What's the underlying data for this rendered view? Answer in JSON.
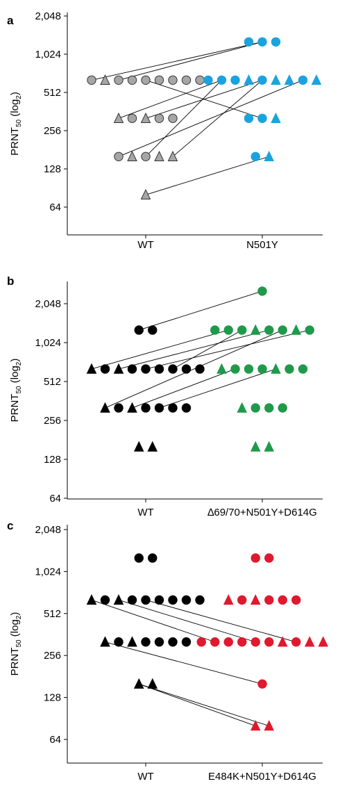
{
  "figure": {
    "ylabel": "PRNT",
    "ylabel_sub": "50",
    "ylabel_tail": " (log",
    "ylabel_tail_sub": "2",
    "ylabel_close": ")",
    "y_ticks": [
      "64",
      "128",
      "256",
      "512",
      "1,024",
      "2,048"
    ]
  },
  "chart_data": [
    {
      "type": "scatter",
      "panel": "a",
      "categories": [
        "WT",
        "N501Y"
      ],
      "y_scale": "log2",
      "ylim": [
        40,
        2048
      ],
      "y_ticks": [
        64,
        128,
        256,
        512,
        1024,
        2048
      ],
      "colors": {
        "WT": "#a6a6a6",
        "variant": "#1ba3e0"
      },
      "points": {
        "WT": [
          {
            "y": 640,
            "markers": [
              "circle",
              "triangle",
              "circle",
              "circle",
              "circle",
              "circle",
              "circle",
              "circle",
              "circle"
            ]
          },
          {
            "y": 320,
            "markers": [
              "triangle",
              "circle",
              "triangle",
              "circle",
              "circle"
            ]
          },
          {
            "y": 160,
            "markers": [
              "circle",
              "triangle",
              "circle",
              "triangle",
              "triangle"
            ]
          },
          {
            "y": 80,
            "markers": [
              "triangle"
            ]
          }
        ],
        "variant": [
          {
            "y": 1280,
            "markers": [
              "circle",
              "circle",
              "circle"
            ]
          },
          {
            "y": 640,
            "markers": [
              "circle",
              "circle",
              "circle",
              "triangle",
              "circle",
              "triangle",
              "triangle",
              "circle",
              "triangle"
            ]
          },
          {
            "y": 320,
            "markers": [
              "circle",
              "circle",
              "triangle"
            ]
          },
          {
            "y": 160,
            "markers": [
              "circle",
              "triangle"
            ]
          }
        ]
      },
      "links": [
        [
          640,
          1280
        ],
        [
          640,
          1280
        ],
        [
          640,
          320
        ],
        [
          320,
          640
        ],
        [
          320,
          640
        ],
        [
          160,
          640
        ],
        [
          160,
          640
        ],
        [
          160,
          640
        ],
        [
          80,
          160
        ]
      ]
    },
    {
      "type": "scatter",
      "panel": "b",
      "categories": [
        "WT",
        "∆69/70+N501Y+D614G"
      ],
      "y_scale": "log2",
      "ylim": [
        64,
        2800
      ],
      "y_ticks": [
        64,
        128,
        256,
        512,
        1024,
        2048
      ],
      "colors": {
        "WT": "#000000",
        "variant": "#1f9a4a"
      },
      "points": {
        "WT": [
          {
            "y": 1280,
            "markers": [
              "circle",
              "circle"
            ]
          },
          {
            "y": 640,
            "markers": [
              "triangle",
              "circle",
              "triangle",
              "circle",
              "circle",
              "circle",
              "circle",
              "circle",
              "circle"
            ]
          },
          {
            "y": 320,
            "markers": [
              "triangle",
              "circle",
              "triangle",
              "circle",
              "circle",
              "circle",
              "circle"
            ]
          },
          {
            "y": 160,
            "markers": [
              "triangle",
              "triangle"
            ]
          }
        ],
        "variant": [
          {
            "y": 2560,
            "markers": [
              "circle"
            ]
          },
          {
            "y": 1280,
            "markers": [
              "circle",
              "circle",
              "circle",
              "triangle",
              "circle",
              "circle",
              "triangle",
              "circle"
            ]
          },
          {
            "y": 640,
            "markers": [
              "triangle",
              "circle",
              "circle",
              "circle",
              "triangle",
              "circle",
              "circle"
            ]
          },
          {
            "y": 320,
            "markers": [
              "triangle",
              "circle",
              "circle",
              "circle"
            ]
          },
          {
            "y": 160,
            "markers": [
              "triangle",
              "triangle"
            ]
          }
        ]
      },
      "links": [
        [
          1280,
          2560
        ],
        [
          640,
          1280
        ],
        [
          640,
          1280
        ],
        [
          640,
          1280
        ],
        [
          640,
          1280
        ],
        [
          320,
          1280
        ],
        [
          320,
          640
        ],
        [
          320,
          640
        ]
      ]
    },
    {
      "type": "scatter",
      "panel": "c",
      "categories": [
        "WT",
        "E484K+N501Y+D614G"
      ],
      "y_scale": "log2",
      "ylim": [
        50,
        2048
      ],
      "y_ticks": [
        64,
        128,
        256,
        512,
        1024,
        2048
      ],
      "colors": {
        "WT": "#000000",
        "variant": "#e0192e"
      },
      "points": {
        "WT": [
          {
            "y": 1280,
            "markers": [
              "circle",
              "circle"
            ]
          },
          {
            "y": 640,
            "markers": [
              "triangle",
              "circle",
              "triangle",
              "circle",
              "circle",
              "circle",
              "circle",
              "circle",
              "circle"
            ]
          },
          {
            "y": 320,
            "markers": [
              "triangle",
              "circle",
              "triangle",
              "circle",
              "circle",
              "circle",
              "circle"
            ]
          },
          {
            "y": 160,
            "markers": [
              "triangle",
              "triangle"
            ]
          }
        ],
        "variant": [
          {
            "y": 1280,
            "markers": [
              "circle",
              "circle"
            ]
          },
          {
            "y": 640,
            "markers": [
              "triangle",
              "circle",
              "triangle",
              "circle",
              "circle",
              "circle"
            ]
          },
          {
            "y": 320,
            "markers": [
              "circle",
              "circle",
              "circle",
              "circle",
              "circle",
              "circle",
              "triangle",
              "circle",
              "triangle",
              "triangle"
            ]
          },
          {
            "y": 160,
            "markers": [
              "circle"
            ]
          },
          {
            "y": 80,
            "markers": [
              "triangle",
              "triangle"
            ]
          }
        ]
      },
      "links": [
        [
          640,
          320
        ],
        [
          640,
          320
        ],
        [
          640,
          320
        ],
        [
          320,
          160
        ],
        [
          160,
          80
        ],
        [
          160,
          80
        ]
      ]
    }
  ]
}
